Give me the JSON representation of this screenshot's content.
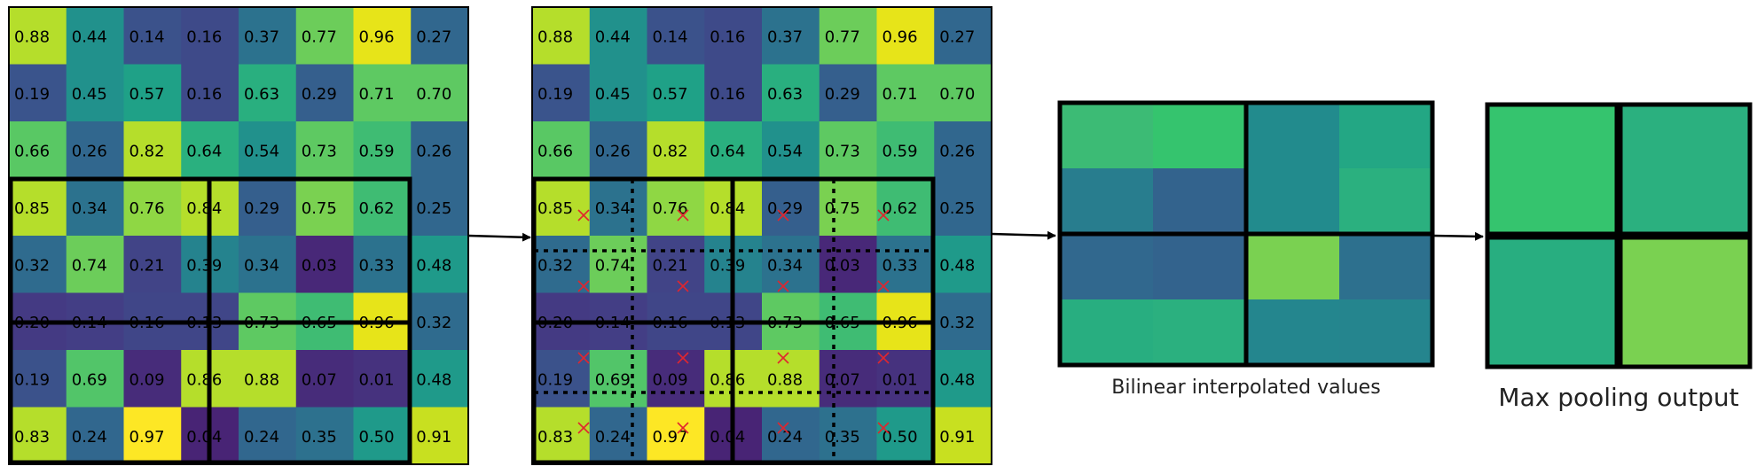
{
  "grid": {
    "values": [
      [
        "0.88",
        "0.44",
        "0.14",
        "0.16",
        "0.37",
        "0.77",
        "0.96",
        "0.27"
      ],
      [
        "0.19",
        "0.45",
        "0.57",
        "0.16",
        "0.63",
        "0.29",
        "0.71",
        "0.70"
      ],
      [
        "0.66",
        "0.26",
        "0.82",
        "0.64",
        "0.54",
        "0.73",
        "0.59",
        "0.26"
      ],
      [
        "0.85",
        "0.34",
        "0.76",
        "0.84",
        "0.29",
        "0.75",
        "0.62",
        "0.25"
      ],
      [
        "0.32",
        "0.74",
        "0.21",
        "0.39",
        "0.34",
        "0.03",
        "0.33",
        "0.48"
      ],
      [
        "0.20",
        "0.14",
        "0.16",
        "0.13",
        "0.73",
        "0.65",
        "0.96",
        "0.32"
      ],
      [
        "0.19",
        "0.69",
        "0.09",
        "0.86",
        "0.88",
        "0.07",
        "0.01",
        "0.48"
      ],
      [
        "0.83",
        "0.24",
        "0.97",
        "0.04",
        "0.24",
        "0.35",
        "0.50",
        "0.91"
      ]
    ],
    "colors": [
      [
        "#b5de2b",
        "#21918c",
        "#3b528b",
        "#3e4a89",
        "#2c728e",
        "#6ccd5a",
        "#e7e419",
        "#31678e"
      ],
      [
        "#3a548c",
        "#21918c",
        "#1fa187",
        "#3e4a89",
        "#29af7f",
        "#355f8d",
        "#5ec962",
        "#5ec962"
      ],
      [
        "#59c864",
        "#31678e",
        "#b5de2b",
        "#2ab07f",
        "#21918c",
        "#5ec962",
        "#3fbc73",
        "#31678e"
      ],
      [
        "#b5de2b",
        "#2c728e",
        "#8fd744",
        "#b5de2b",
        "#355f8d",
        "#7ad151",
        "#3fbc73",
        "#31678e"
      ],
      [
        "#2f6b8e",
        "#6ccd5a",
        "#414487",
        "#25838e",
        "#2c728e",
        "#482878",
        "#2c728e",
        "#1f9a8a"
      ],
      [
        "#443a83",
        "#433e85",
        "#404688",
        "#404688",
        "#5ec962",
        "#3fbc73",
        "#e7e419",
        "#2f6b8e"
      ],
      [
        "#3b528b",
        "#52c569",
        "#472c7a",
        "#b5de2b",
        "#b5de2b",
        "#472c7a",
        "#46327e",
        "#1f9a8a"
      ],
      [
        "#b5de2b",
        "#31678e",
        "#fde725",
        "#482475",
        "#31678e",
        "#2d718e",
        "#1f9a8a",
        "#c8e020"
      ]
    ],
    "roi_note": "ROI spans about 7 of 8 columns and 5 of 8 rows in the lower-left, split into a 2×2 grid of pooling bins"
  },
  "bilinear": {
    "caption": "Bilinear interpolated values",
    "colors": [
      [
        "#3cbb75",
        "#35c46e",
        "#228b8d",
        "#23a784"
      ],
      [
        "#287d8e",
        "#33638d",
        "#228b8d",
        "#2bb07f"
      ],
      [
        "#31688e",
        "#33638d",
        "#7ad151",
        "#2d708e"
      ],
      [
        "#28ae80",
        "#2bb07f",
        "#24868e",
        "#25858e"
      ]
    ]
  },
  "pooling": {
    "caption": "Max pooling output",
    "colors": [
      [
        "#35c46e",
        "#2bb07f"
      ],
      [
        "#28ae80",
        "#7ad151"
      ]
    ]
  }
}
